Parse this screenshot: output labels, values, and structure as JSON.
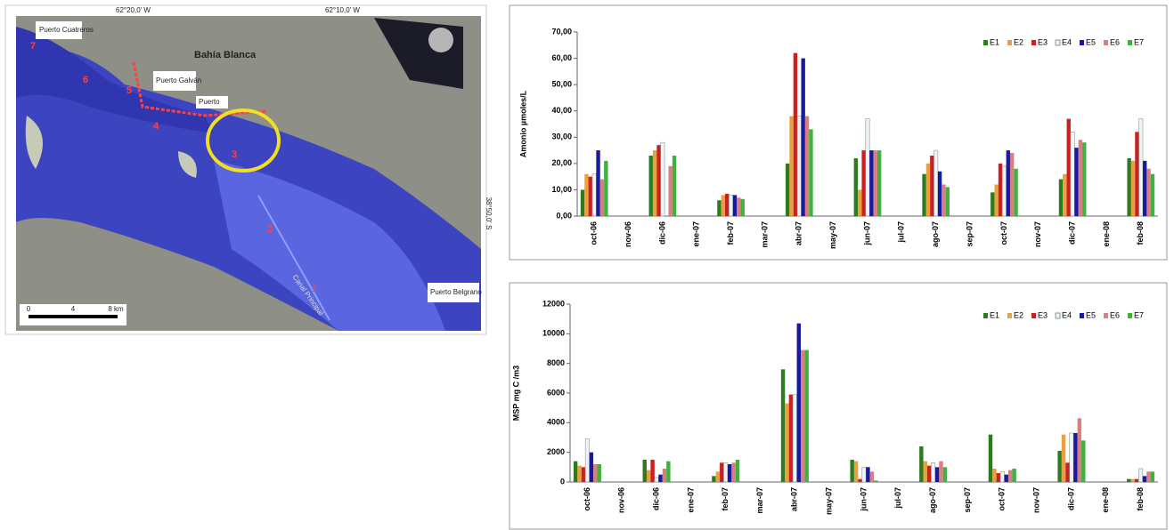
{
  "map": {
    "lon_labels": [
      "62°20,0' W",
      "62°10,0' W"
    ],
    "lat_label": "38°50,0' S",
    "place_labels": [
      "Puerto Cuatreros",
      "Bahía Blanca",
      "Puerto Galván",
      "Puerto",
      "Canal Principal",
      "Puerto Belgrano"
    ],
    "station_labels": [
      "1",
      "2",
      "3",
      "4",
      "5",
      "6",
      "7"
    ],
    "scale_labels": [
      "0",
      "4",
      "8 km"
    ]
  },
  "chart_data": [
    {
      "type": "bar",
      "ylabel": "Amonio µmoles/L",
      "categories": [
        "oct-06",
        "nov-06",
        "dic-06",
        "ene-07",
        "feb-07",
        "mar-07",
        "abr-07",
        "may-07",
        "jun-07",
        "jul-07",
        "ago-07",
        "sep-07",
        "oct-07",
        "nov-07",
        "dic-07",
        "ene-08",
        "feb-08"
      ],
      "ylim": [
        0,
        70
      ],
      "yticks": [
        {
          "value": 0,
          "label": "0,00"
        },
        {
          "value": 10,
          "label": "10,00"
        },
        {
          "value": 20,
          "label": "20,00"
        },
        {
          "value": 30,
          "label": "30,00"
        },
        {
          "value": 40,
          "label": "40,00"
        },
        {
          "value": 50,
          "label": "50,00"
        },
        {
          "value": 60,
          "label": "60,00"
        },
        {
          "value": 70,
          "label": "70,00"
        }
      ],
      "legend": "top-right",
      "series": [
        {
          "name": "E1",
          "color": "#2e7a1e",
          "values": [
            10,
            null,
            23,
            null,
            6,
            null,
            20,
            null,
            22,
            null,
            16,
            null,
            9,
            null,
            14,
            null,
            22
          ]
        },
        {
          "name": "E2",
          "color": "#e8a040",
          "values": [
            16,
            null,
            25,
            null,
            8,
            null,
            38,
            null,
            10,
            null,
            20,
            null,
            12,
            null,
            16,
            null,
            21
          ]
        },
        {
          "name": "E3",
          "color": "#cc2020",
          "values": [
            15,
            null,
            27,
            null,
            8.5,
            null,
            62,
            null,
            25,
            null,
            23,
            null,
            20,
            null,
            37,
            null,
            32
          ]
        },
        {
          "name": "E4",
          "color": "#eef4f4",
          "values": [
            16,
            null,
            28,
            null,
            8,
            null,
            38,
            null,
            37,
            null,
            25,
            null,
            19,
            null,
            32,
            null,
            37
          ]
        },
        {
          "name": "E5",
          "color": "#1a1aa0",
          "values": [
            25,
            null,
            null,
            null,
            8,
            null,
            60,
            null,
            25,
            null,
            17,
            null,
            25,
            null,
            26,
            null,
            21
          ]
        },
        {
          "name": "E6",
          "color": "#d88080",
          "values": [
            14,
            null,
            19,
            null,
            7,
            null,
            38,
            null,
            25,
            null,
            12,
            null,
            24,
            null,
            29,
            null,
            18
          ]
        },
        {
          "name": "E7",
          "color": "#40b040",
          "values": [
            21,
            null,
            23,
            null,
            6.5,
            null,
            33,
            null,
            25,
            null,
            11,
            null,
            18,
            null,
            28,
            null,
            16
          ]
        }
      ]
    },
    {
      "type": "bar",
      "ylabel": "MSP mg C /m3",
      "categories": [
        "oct-06",
        "nov-06",
        "dic-06",
        "ene-07",
        "feb-07",
        "mar-07",
        "abr-07",
        "may-07",
        "jun-07",
        "jul-07",
        "ago-07",
        "sep-07",
        "oct-07",
        "nov-07",
        "dic-07",
        "ene-08",
        "feb-08"
      ],
      "ylim": [
        0,
        12000
      ],
      "yticks": [
        0,
        2000,
        4000,
        6000,
        8000,
        10000,
        12000
      ],
      "legend": "top-right",
      "series": [
        {
          "name": "E1",
          "color": "#2e7a1e",
          "values": [
            1400,
            null,
            1500,
            null,
            400,
            null,
            7600,
            null,
            1500,
            null,
            2400,
            null,
            3200,
            null,
            2100,
            null,
            200
          ]
        },
        {
          "name": "E2",
          "color": "#e8a040",
          "values": [
            1100,
            null,
            800,
            null,
            700,
            null,
            5300,
            null,
            1400,
            null,
            1400,
            null,
            900,
            null,
            3200,
            null,
            200
          ]
        },
        {
          "name": "E3",
          "color": "#cc2020",
          "values": [
            1000,
            null,
            1500,
            null,
            1300,
            null,
            5900,
            null,
            200,
            null,
            1100,
            null,
            600,
            null,
            1300,
            null,
            200
          ]
        },
        {
          "name": "E4",
          "color": "#eef4f4",
          "values": [
            2900,
            null,
            300,
            null,
            1300,
            null,
            5900,
            null,
            1000,
            null,
            1300,
            null,
            700,
            null,
            3300,
            null,
            900
          ]
        },
        {
          "name": "E5",
          "color": "#1a1aa0",
          "values": [
            2000,
            null,
            500,
            null,
            1200,
            null,
            10700,
            null,
            1000,
            null,
            1000,
            null,
            500,
            null,
            3300,
            null,
            400
          ]
        },
        {
          "name": "E6",
          "color": "#d88080",
          "values": [
            1200,
            null,
            900,
            null,
            1300,
            null,
            8900,
            null,
            700,
            null,
            1400,
            null,
            800,
            null,
            4300,
            null,
            700
          ]
        },
        {
          "name": "E7",
          "color": "#40b040",
          "values": [
            1200,
            null,
            1400,
            null,
            1500,
            null,
            8900,
            null,
            100,
            null,
            1000,
            null,
            900,
            null,
            2800,
            null,
            700
          ]
        }
      ]
    }
  ]
}
